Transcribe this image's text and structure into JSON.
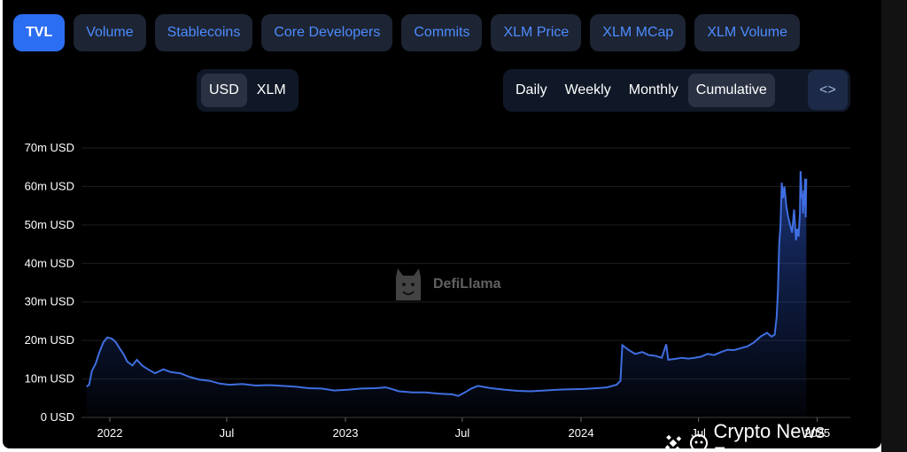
{
  "tabs": [
    {
      "label": "TVL",
      "active": true
    },
    {
      "label": "Volume",
      "active": false
    },
    {
      "label": "Stablecoins",
      "active": false
    },
    {
      "label": "Core Developers",
      "active": false
    },
    {
      "label": "Commits",
      "active": false
    },
    {
      "label": "XLM Price",
      "active": false
    },
    {
      "label": "XLM MCap",
      "active": false
    },
    {
      "label": "XLM Volume",
      "active": false
    }
  ],
  "denomination": [
    {
      "label": "USD",
      "selected": true
    },
    {
      "label": "XLM",
      "selected": false
    }
  ],
  "periods": [
    {
      "label": "Daily",
      "selected": false
    },
    {
      "label": "Weekly",
      "selected": false
    },
    {
      "label": "Monthly",
      "selected": false
    },
    {
      "label": "Cumulative",
      "selected": true
    }
  ],
  "embed_label": "<>",
  "watermark": "DefiLlama",
  "source_tag": "Crypto News Focus",
  "colors": {
    "line": "#3f6ee0",
    "accent": "#2c6ef2",
    "background": "#000000"
  },
  "chart_data": {
    "type": "area",
    "title": "",
    "xlabel": "",
    "ylabel": "",
    "unit": "m USD",
    "ylim": [
      0,
      70
    ],
    "xlim": [
      "2021-11-26",
      "2024-12-15"
    ],
    "x_ticks": [
      {
        "date": "2022-01-01",
        "label": "2022"
      },
      {
        "date": "2022-07-01",
        "label": "Jul"
      },
      {
        "date": "2023-01-01",
        "label": "2023"
      },
      {
        "date": "2023-07-01",
        "label": "Jul"
      },
      {
        "date": "2024-01-01",
        "label": "2024"
      },
      {
        "date": "2024-07-01",
        "label": "Jul"
      },
      {
        "date": "2025-01-01",
        "label": "2025"
      }
    ],
    "y_ticks": [
      {
        "value": 0,
        "label": "0 USD"
      },
      {
        "value": 10,
        "label": "10m USD"
      },
      {
        "value": 20,
        "label": "20m USD"
      },
      {
        "value": 30,
        "label": "30m USD"
      },
      {
        "value": 40,
        "label": "40m USD"
      },
      {
        "value": 50,
        "label": "50m USD"
      },
      {
        "value": 60,
        "label": "60m USD"
      },
      {
        "value": 70,
        "label": "70m USD"
      }
    ],
    "grid": true,
    "series": [
      {
        "values": [
          [
            "2021-11-26",
            8
          ],
          [
            "2021-11-30",
            8.5
          ],
          [
            "2021-12-04",
            12
          ],
          [
            "2021-12-10",
            14
          ],
          [
            "2021-12-16",
            17
          ],
          [
            "2021-12-22",
            19.5
          ],
          [
            "2021-12-28",
            20.8
          ],
          [
            "2022-01-04",
            20.5
          ],
          [
            "2022-01-10",
            19.6
          ],
          [
            "2022-01-16",
            18
          ],
          [
            "2022-01-22",
            16.5
          ],
          [
            "2022-01-28",
            14.5
          ],
          [
            "2022-02-05",
            13.5
          ],
          [
            "2022-02-12",
            15
          ],
          [
            "2022-02-20",
            13.5
          ],
          [
            "2022-03-01",
            12.5
          ],
          [
            "2022-03-12",
            11.5
          ],
          [
            "2022-03-25",
            12.5
          ],
          [
            "2022-04-05",
            11.8
          ],
          [
            "2022-04-20",
            11.5
          ],
          [
            "2022-05-05",
            10.5
          ],
          [
            "2022-05-20",
            9.8
          ],
          [
            "2022-06-05",
            9.5
          ],
          [
            "2022-06-20",
            8.8
          ],
          [
            "2022-07-05",
            8.5
          ],
          [
            "2022-07-25",
            8.7
          ],
          [
            "2022-08-15",
            8.3
          ],
          [
            "2022-09-05",
            8.4
          ],
          [
            "2022-09-25",
            8.2
          ],
          [
            "2022-10-15",
            8
          ],
          [
            "2022-11-05",
            7.6
          ],
          [
            "2022-11-25",
            7.5
          ],
          [
            "2022-12-15",
            7
          ],
          [
            "2023-01-05",
            7.2
          ],
          [
            "2023-01-25",
            7.5
          ],
          [
            "2023-02-15",
            7.6
          ],
          [
            "2023-03-05",
            7.8
          ],
          [
            "2023-03-25",
            6.8
          ],
          [
            "2023-04-15",
            6.5
          ],
          [
            "2023-05-05",
            6.5
          ],
          [
            "2023-05-25",
            6.2
          ],
          [
            "2023-06-15",
            6
          ],
          [
            "2023-06-25",
            5.6
          ],
          [
            "2023-07-05",
            6.5
          ],
          [
            "2023-07-15",
            7.5
          ],
          [
            "2023-07-25",
            8.2
          ],
          [
            "2023-08-15",
            7.6
          ],
          [
            "2023-09-05",
            7.2
          ],
          [
            "2023-09-25",
            6.9
          ],
          [
            "2023-10-15",
            6.8
          ],
          [
            "2023-11-05",
            7
          ],
          [
            "2023-11-25",
            7.2
          ],
          [
            "2023-12-15",
            7.3
          ],
          [
            "2024-01-05",
            7.4
          ],
          [
            "2024-01-25",
            7.6
          ],
          [
            "2024-02-10",
            7.8
          ],
          [
            "2024-02-25",
            8.5
          ],
          [
            "2024-03-02",
            9.5
          ],
          [
            "2024-03-05",
            18.8
          ],
          [
            "2024-03-15",
            17.5
          ],
          [
            "2024-03-25",
            16.5
          ],
          [
            "2024-04-05",
            17
          ],
          [
            "2024-04-15",
            16.2
          ],
          [
            "2024-04-25",
            16
          ],
          [
            "2024-05-05",
            15.5
          ],
          [
            "2024-05-12",
            19
          ],
          [
            "2024-05-15",
            15
          ],
          [
            "2024-05-25",
            15.2
          ],
          [
            "2024-06-05",
            15.5
          ],
          [
            "2024-06-15",
            15.3
          ],
          [
            "2024-06-25",
            15.5
          ],
          [
            "2024-07-05",
            15.8
          ],
          [
            "2024-07-15",
            16.5
          ],
          [
            "2024-07-25",
            16.2
          ],
          [
            "2024-08-05",
            17
          ],
          [
            "2024-08-15",
            17.6
          ],
          [
            "2024-08-25",
            17.5
          ],
          [
            "2024-09-05",
            18
          ],
          [
            "2024-09-15",
            18.5
          ],
          [
            "2024-09-25",
            19.5
          ],
          [
            "2024-10-05",
            21
          ],
          [
            "2024-10-15",
            22
          ],
          [
            "2024-10-22",
            21
          ],
          [
            "2024-10-27",
            21.5
          ],
          [
            "2024-10-30",
            26
          ],
          [
            "2024-11-01",
            33
          ],
          [
            "2024-11-03",
            45
          ],
          [
            "2024-11-05",
            50
          ],
          [
            "2024-11-07",
            61
          ],
          [
            "2024-11-09",
            57
          ],
          [
            "2024-11-11",
            60
          ],
          [
            "2024-11-14",
            55
          ],
          [
            "2024-11-17",
            52
          ],
          [
            "2024-11-20",
            50
          ],
          [
            "2024-11-23",
            48
          ],
          [
            "2024-11-26",
            54
          ],
          [
            "2024-11-29",
            46
          ],
          [
            "2024-12-01",
            49
          ],
          [
            "2024-12-03",
            47
          ],
          [
            "2024-12-05",
            53
          ],
          [
            "2024-12-06",
            64
          ],
          [
            "2024-12-07",
            61
          ],
          [
            "2024-12-08",
            57
          ],
          [
            "2024-12-09",
            58
          ],
          [
            "2024-12-10",
            53
          ],
          [
            "2024-12-11",
            59
          ],
          [
            "2024-12-12",
            55
          ],
          [
            "2024-12-13",
            62
          ],
          [
            "2024-12-14",
            52
          ],
          [
            "2024-12-15",
            62
          ]
        ]
      }
    ]
  }
}
